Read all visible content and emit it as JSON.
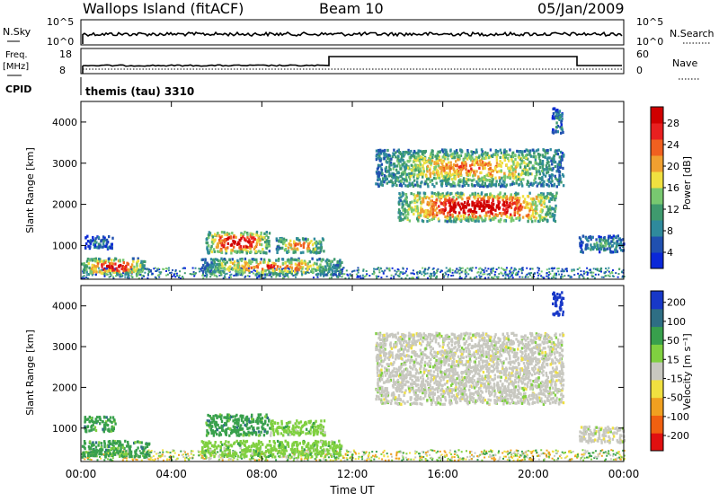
{
  "header": {
    "station": "Wallops Island (fitACF)",
    "beam": "Beam 10",
    "date": "05/Jan/2009"
  },
  "nsky_panel": {
    "left_label": "N.Sky",
    "left_ticks": [
      "10^5",
      "10^0"
    ],
    "right_label": "N.Search",
    "right_ticks": [
      "10^5",
      "10^0"
    ]
  },
  "freq_panel": {
    "left_label_1": "Freq.",
    "left_label_2": "[MHz]",
    "left_ticks": [
      "18",
      "8"
    ],
    "right_label": "Nave",
    "right_ticks": [
      "60",
      "0"
    ]
  },
  "cpid": {
    "label": "CPID",
    "value": "themis (tau) 3310"
  },
  "chart_data": [
    {
      "type": "heatmap",
      "name": "power",
      "ylabel": "Slant Range [km]",
      "ylim": [
        180,
        4500
      ],
      "yticks": [
        "1000",
        "2000",
        "3000",
        "4000"
      ],
      "xlim": [
        0,
        24
      ],
      "colorbar": {
        "label": "Power [dB]",
        "ticks": [
          "28",
          "24",
          "20",
          "16",
          "12",
          "8",
          "4"
        ],
        "colors": [
          "#0a28d8",
          "#2050b0",
          "#2f8a9c",
          "#3f9a6e",
          "#78c870",
          "#f0e040",
          "#f0a030",
          "#f06020",
          "#e82020",
          "#d00000"
        ]
      },
      "regions": [
        {
          "t0": 0.0,
          "t1": 2.8,
          "r0": 250,
          "r1": 650,
          "level": 0.75
        },
        {
          "t0": 0.1,
          "t1": 1.4,
          "r0": 880,
          "r1": 1200,
          "level": 0.2
        },
        {
          "t0": 5.5,
          "t1": 8.3,
          "r0": 780,
          "r1": 1300,
          "level": 0.85
        },
        {
          "t0": 8.6,
          "t1": 10.7,
          "r0": 780,
          "r1": 1150,
          "level": 0.6
        },
        {
          "t0": 5.3,
          "t1": 11.5,
          "r0": 250,
          "r1": 650,
          "level": 0.6
        },
        {
          "t0": 13.0,
          "t1": 21.3,
          "r0": 2400,
          "r1": 3300,
          "level": 0.55
        },
        {
          "t0": 14.0,
          "t1": 21.0,
          "r0": 1550,
          "r1": 2250,
          "level": 0.85
        },
        {
          "t0": 22.0,
          "t1": 24.0,
          "r0": 800,
          "r1": 1200,
          "level": 0.3
        },
        {
          "t0": 20.8,
          "t1": 21.3,
          "r0": 3700,
          "r1": 4300,
          "level": 0.25
        }
      ]
    },
    {
      "type": "heatmap",
      "name": "velocity",
      "ylabel": "Slant Range [km]",
      "ylim": [
        180,
        4500
      ],
      "yticks": [
        "1000",
        "2000",
        "3000",
        "4000"
      ],
      "xlim": [
        0,
        24
      ],
      "xticks": [
        "00:00",
        "04:00",
        "08:00",
        "12:00",
        "16:00",
        "20:00",
        "00:00"
      ],
      "xlabel": "Time UT",
      "colorbar": {
        "label": "Velocity [m s⁻¹]",
        "ticks": [
          "200",
          "100",
          "50",
          "15",
          "-15",
          "-50",
          "-100",
          "-200"
        ],
        "colors": [
          "#1838c8",
          "#2e6e84",
          "#38a04c",
          "#80d040",
          "#c8c8c0",
          "#f0e040",
          "#f0a020",
          "#f06010",
          "#e01010"
        ]
      },
      "regions": [
        {
          "t0": 0.0,
          "t1": 3.0,
          "r0": 250,
          "r1": 650,
          "vel": "50"
        },
        {
          "t0": 0.1,
          "t1": 1.5,
          "r0": 880,
          "r1": 1250,
          "vel": "50"
        },
        {
          "t0": 5.5,
          "t1": 8.3,
          "r0": 780,
          "r1": 1300,
          "vel": "50"
        },
        {
          "t0": 8.3,
          "t1": 10.8,
          "r0": 780,
          "r1": 1150,
          "vel": "15"
        },
        {
          "t0": 5.3,
          "t1": 11.5,
          "r0": 250,
          "r1": 650,
          "vel": "15"
        },
        {
          "t0": 13.0,
          "t1": 21.3,
          "r0": 1550,
          "r1": 3300,
          "vel": "-15"
        },
        {
          "t0": 22.0,
          "t1": 24.0,
          "r0": 600,
          "r1": 1000,
          "vel": "-15"
        },
        {
          "t0": 20.8,
          "t1": 21.3,
          "r0": 3700,
          "r1": 4300,
          "vel": "200"
        }
      ]
    }
  ]
}
